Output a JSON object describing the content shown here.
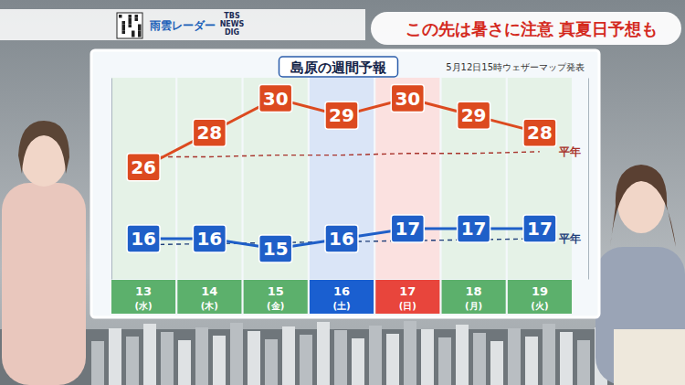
{
  "chart_data": {
    "type": "line",
    "title": "島原の週間予報",
    "subtitle": "5月12日15時ウェザーマップ発表",
    "annotations": [
      "雨雲レーダー",
      "TBS NEWS DIG",
      "この先は暑さに注意 真夏日予想も"
    ],
    "categories": [
      "13",
      "14",
      "15",
      "16",
      "17",
      "18",
      "19"
    ],
    "weekdays": [
      "(水)",
      "(木)",
      "(金)",
      "(土)",
      "(日)",
      "(月)",
      "(火)"
    ],
    "colors": [
      "#5cb06c",
      "#5cb06c",
      "#5cb06c",
      "#1a5fd0",
      "#e8453c",
      "#5cb06c",
      "#5cb06c"
    ],
    "series": [
      {
        "color": "#dc4a1f",
        "marker": "square",
        "data_labels": true,
        "values": [
          26,
          28,
          30,
          29,
          30,
          29,
          28
        ]
      },
      {
        "color": "#1f5fc8",
        "marker": "square",
        "data_labels": true,
        "axis": "y2",
        "values": [
          16,
          16,
          15,
          16,
          17,
          17,
          17
        ]
      },
      {
        "name": "平年",
        "color": "#a8322a",
        "line_style": "dashed",
        "values": [
          26.6,
          26.6,
          26.7,
          26.7,
          26.8,
          26.8,
          26.9
        ]
      },
      {
        "name": "平年",
        "color": "#1f3f7a",
        "line_style": "dashed",
        "axis": "y2",
        "values": [
          15.4,
          15.5,
          15.6,
          15.7,
          15.8,
          15.9,
          16.0
        ]
      }
    ],
    "ylim": [
      19.5,
      31.2
    ],
    "y2lim": [
      12,
      32
    ],
    "tick_labels": false,
    "grid": false,
    "legend": "right"
  }
}
